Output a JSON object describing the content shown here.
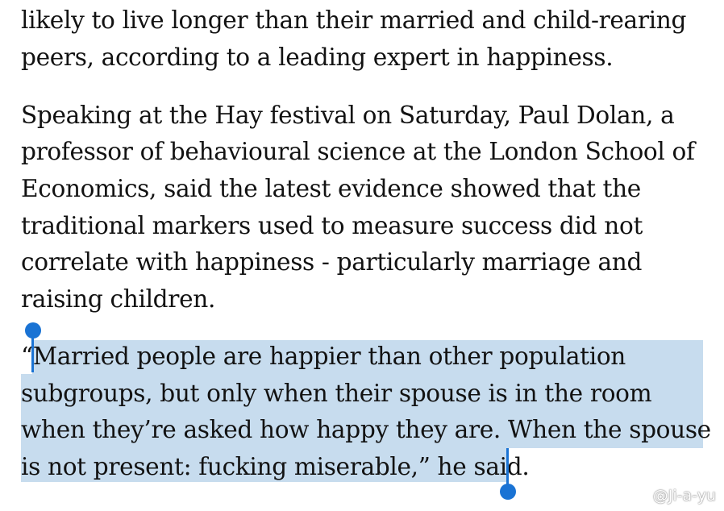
{
  "article": {
    "paragraph1": {
      "lines": [
        "likely to live longer than their married and child-rearing",
        "peers, according to a leading expert in happiness."
      ]
    },
    "paragraph2": {
      "lines": [
        "Speaking at the Hay festival on Saturday, Paul Dolan, a",
        "professor of behavioural science at the London School of",
        "Economics, said the latest evidence showed that the",
        "traditional markers used to measure success did not",
        "correlate with happiness - particularly marriage and",
        "raising children."
      ]
    },
    "paragraph3": {
      "lines": [
        "“Married people are happier than other population",
        "subgroups, but only when their spouse is in the room",
        "when they’re asked how happy they are. When the spouse",
        "is not present: fucking miserable,” he said."
      ]
    }
  },
  "selection": {
    "color": "#c7dcee",
    "handle_color": "#1a73d4"
  },
  "watermark": {
    "text": "@Ji-a-yu",
    "icon": "weibo-logo-icon"
  }
}
